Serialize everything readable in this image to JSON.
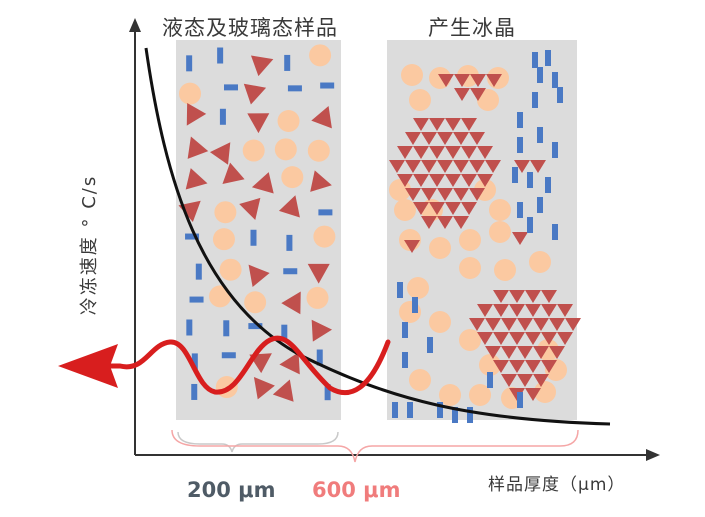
{
  "labels": {
    "left_panel_title": "液态及玻璃态样品",
    "right_panel_title": "产生冰晶",
    "y_axis": "冷冻速度  ° C/s",
    "x_axis": "样品厚度（μm）",
    "dim_200": "200 μm",
    "dim_600": "600 μm"
  },
  "colors": {
    "panel": "#dcdcdc",
    "circle": "#fbc9a1",
    "triangle": "#c0504d",
    "rect": "#4a79c4",
    "curve": "#111111",
    "wave": "#d81e1e",
    "brace_200": "#c9c9c9",
    "brace_600": "#f5a6a6"
  }
}
